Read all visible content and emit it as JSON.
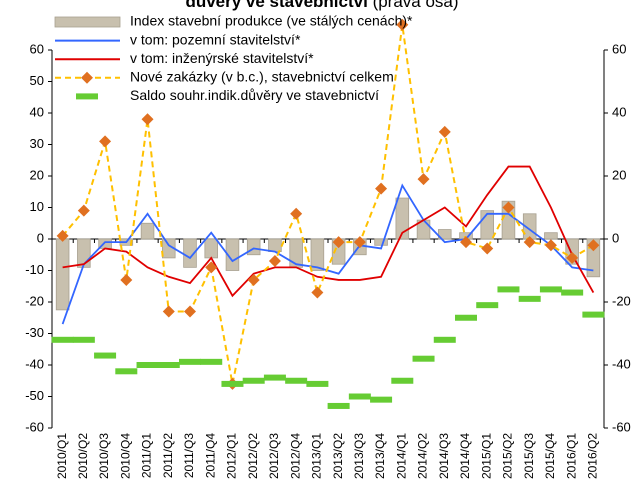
{
  "chart_data": {
    "type": "bar",
    "title": "důvěry ve stavebnictví",
    "title_note": "(pravá osa)",
    "categories": [
      "2010/Q1",
      "2010/Q2",
      "2010/Q3",
      "2010/Q4",
      "2011/Q1",
      "2011/Q2",
      "2011/Q3",
      "2011/Q4",
      "2012/Q1",
      "2012/Q2",
      "2012/Q3",
      "2012/Q4",
      "2013/Q1",
      "2013/Q2",
      "2013/Q3",
      "2013/Q4",
      "2014/Q1",
      "2014/Q2",
      "2014/Q3",
      "2014/Q4",
      "2015/Q1",
      "2015/Q2",
      "2015/Q3",
      "2015/Q4",
      "2016/Q1",
      "2016/Q2"
    ],
    "series": [
      {
        "name": "Index stavební produkce (ve stálých cenách)*",
        "type": "bar",
        "color": "#c8c0ae",
        "values": [
          -22.5,
          -9,
          -3,
          -2,
          5,
          -6,
          -9,
          -6,
          -10,
          -5,
          -4,
          -9,
          -10,
          -8,
          -5,
          -2,
          13,
          6,
          3,
          2,
          9,
          12,
          8,
          2,
          -8,
          -12
        ]
      },
      {
        "name": "v tom: pozemní stavitelství*",
        "type": "line",
        "color": "#3366ff",
        "values": [
          -27,
          -8,
          -1,
          -1,
          8,
          -2,
          -6,
          2,
          -7,
          -3,
          -4,
          -8,
          -9,
          -11,
          -2,
          -3,
          17,
          6,
          -1,
          0,
          8,
          8,
          3,
          -2,
          -9,
          -10
        ]
      },
      {
        "name": "v tom: inženýrské stavitelství*",
        "type": "line",
        "color": "#e00000",
        "values": [
          -9,
          -8,
          -3,
          -4,
          -9,
          -12,
          -14,
          -6,
          -18,
          -11,
          -9,
          -9,
          -12,
          -13,
          -13,
          -12,
          2,
          6,
          10,
          4,
          14,
          23,
          23,
          10,
          -5,
          -17
        ]
      },
      {
        "name": "Nové zakázky (v b.c.), stavebnictví celkem",
        "type": "line",
        "line_style": "dashed",
        "marker": "diamond",
        "marker_color": "#e07020",
        "color": "#ffc000",
        "axis": "y2",
        "values": [
          1,
          9,
          31,
          -13,
          38,
          -23,
          -23,
          -9,
          -46,
          -13,
          -7,
          8,
          -17,
          -1,
          -1,
          16,
          68,
          19,
          34,
          -1,
          -3,
          10,
          -1,
          -2,
          -6,
          -2
        ]
      },
      {
        "name": "Saldo souhr.indik.důvěry ve stavebnictví",
        "type": "scatter",
        "marker": "dash",
        "color": "#66cc33",
        "axis": "y2",
        "values": [
          -32,
          -32,
          -37,
          -42,
          -40,
          -40,
          -39,
          -39,
          -46,
          -45,
          -44,
          -45,
          -46,
          -53,
          -50,
          -51,
          -45,
          -38,
          -32,
          -25,
          -21,
          -16,
          -19,
          -16,
          -17,
          -24
        ]
      }
    ],
    "ylim": [
      -60,
      60
    ],
    "yticks": [
      -60,
      -50,
      -40,
      -30,
      -20,
      -10,
      0,
      10,
      20,
      30,
      40,
      50,
      60
    ],
    "y2lim": [
      -60,
      60
    ],
    "y2ticks": [
      -60,
      -40,
      -20,
      0,
      20,
      40,
      60
    ],
    "grid": false,
    "legend": "top-left"
  }
}
